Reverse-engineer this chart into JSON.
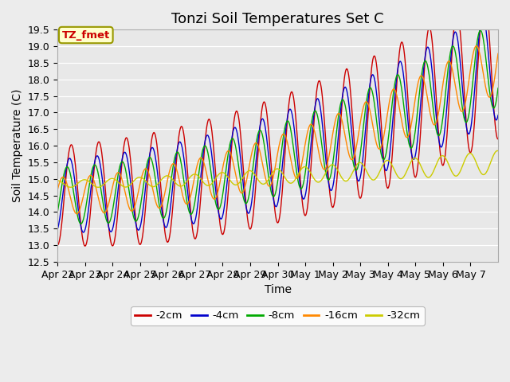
{
  "title": "Tonzi Soil Temperatures Set C",
  "xlabel": "Time",
  "ylabel": "Soil Temperature (C)",
  "ylim": [
    12.5,
    19.5
  ],
  "x_tick_labels": [
    "Apr 22",
    "Apr 23",
    "Apr 24",
    "Apr 25",
    "Apr 26",
    "Apr 27",
    "Apr 28",
    "Apr 29",
    "Apr 30",
    "May 1",
    "May 2",
    "May 3",
    "May 4",
    "May 5",
    "May 6",
    "May 7"
  ],
  "series_labels": [
    "-2cm",
    "-4cm",
    "-8cm",
    "-16cm",
    "-32cm"
  ],
  "series_colors": [
    "#cc0000",
    "#0000cc",
    "#00aa00",
    "#ff8800",
    "#cccc00"
  ],
  "annotation_text": "TZ_fmet",
  "annotation_color": "#cc0000",
  "annotation_bg": "#ffffcc",
  "annotation_edge": "#999900",
  "plot_bg": "#e8e8e8",
  "fig_bg": "#ececec",
  "grid_color": "#ffffff",
  "title_fontsize": 13,
  "label_fontsize": 10,
  "tick_fontsize": 9
}
